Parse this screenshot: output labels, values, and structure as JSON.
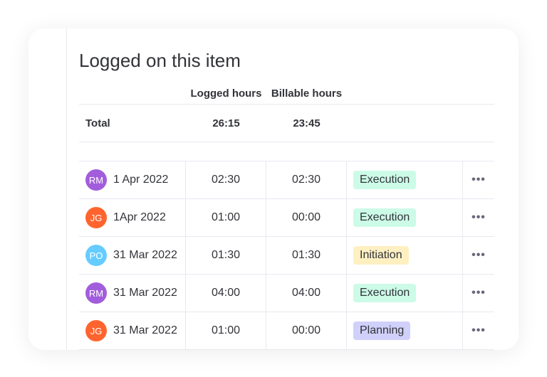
{
  "title": "Logged on this item",
  "headers": {
    "logged": "Logged hours",
    "billable": "Billable hours"
  },
  "total": {
    "label": "Total",
    "logged": "26:15",
    "billable": "23:45"
  },
  "rows": [
    {
      "initials": "RM",
      "avatar_color": "#a25ddc",
      "date": "1 Apr 2022",
      "logged": "02:30",
      "billable": "02:30",
      "phase": "Execution",
      "phase_color": "#ccfbe8",
      "menu": "•••"
    },
    {
      "initials": "JG",
      "avatar_color": "#ff642e",
      "date": "1Apr 2022",
      "logged": "01:00",
      "billable": "00:00",
      "phase": "Execution",
      "phase_color": "#ccfbe8",
      "menu": "•••"
    },
    {
      "initials": "PO",
      "avatar_color": "#66ccff",
      "date": "31 Mar 2022",
      "logged": "01:30",
      "billable": "01:30",
      "phase": "Initiation",
      "phase_color": "#fff0c2",
      "menu": "•••"
    },
    {
      "initials": "RM",
      "avatar_color": "#a25ddc",
      "date": "31 Mar 2022",
      "logged": "04:00",
      "billable": "04:00",
      "phase": "Execution",
      "phase_color": "#ccfbe8",
      "menu": "•••"
    },
    {
      "initials": "JG",
      "avatar_color": "#ff642e",
      "date": "31 Mar 2022",
      "logged": "01:00",
      "billable": "00:00",
      "phase": "Planning",
      "phase_color": "#d0d0fb",
      "menu": "•••"
    }
  ]
}
